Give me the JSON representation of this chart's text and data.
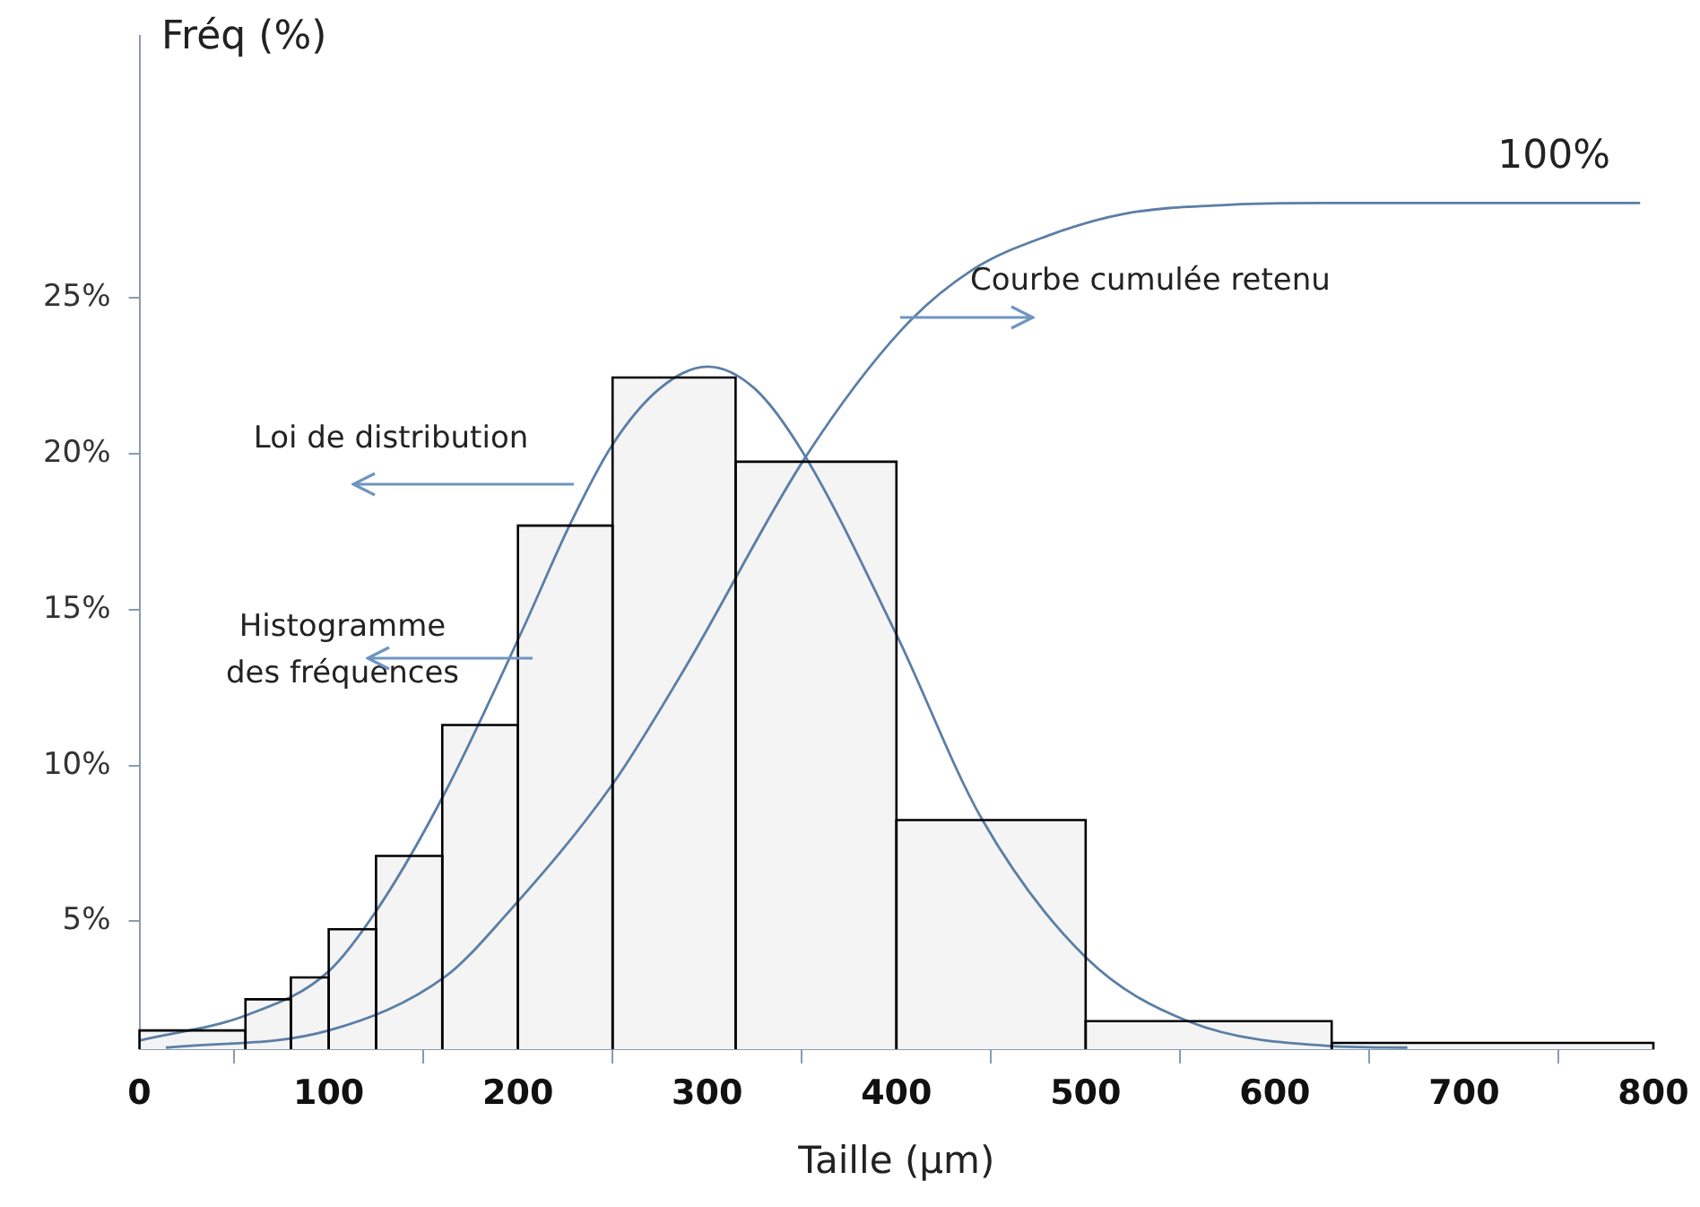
{
  "chart_data": {
    "type": "histogram",
    "ylabel": "Fréq (%)",
    "xlabel": "Taille (μm)",
    "bins": [
      0,
      56,
      80,
      100,
      125,
      160,
      200,
      250,
      315,
      400,
      500,
      630,
      800
    ],
    "values": [
      1.5,
      2.5,
      3.2,
      4.75,
      7.1,
      11.3,
      17.7,
      22.45,
      19.75,
      8.25,
      1.8,
      1.1
    ],
    "color": "#f4f4f4",
    "series": [
      {
        "type": "line",
        "color": "#5b7ea6",
        "x": [
          0,
          57,
          100,
          128,
          162,
          202,
          228,
          250,
          275,
          300,
          325,
          351,
          400,
          445,
          500,
          554,
          630,
          670
        ],
        "values": [
          1.18,
          2.0,
          3.4,
          5.6,
          9.2,
          14.3,
          17.8,
          20.3,
          22.1,
          22.8,
          22.1,
          20.0,
          14.2,
          8.3,
          3.85,
          1.8,
          1.0,
          0.95
        ]
      },
      {
        "type": "line",
        "color": "#5b7ea6",
        "x": [
          14,
          100,
          162,
          193,
          250,
          288,
          352,
          403,
          440,
          480,
          520,
          578,
          625,
          793
        ],
        "values": [
          0.95,
          1.5,
          3.25,
          5.16,
          9.4,
          13.1,
          19.9,
          24.0,
          25.9,
          27.0,
          27.7,
          28.0,
          28.05,
          28.05
        ]
      }
    ],
    "xlim": [
      0,
      800
    ],
    "xticks": [
      0,
      100,
      200,
      300,
      400,
      500,
      600,
      700,
      800
    ],
    "ylim": [
      0.9,
      33.4
    ],
    "yticks": [
      {
        "value": 5,
        "label": "5%"
      },
      {
        "value": 10,
        "label": "10%"
      },
      {
        "value": 15,
        "label": "15%"
      },
      {
        "value": 20,
        "label": "20%"
      },
      {
        "value": 25,
        "label": "25%"
      }
    ],
    "annotations": [
      "Loi de distribution",
      "Histogramme\ndes fréquences",
      "Courbe cumulée retenu",
      "100%"
    ],
    "grid": false,
    "legend": false
  }
}
